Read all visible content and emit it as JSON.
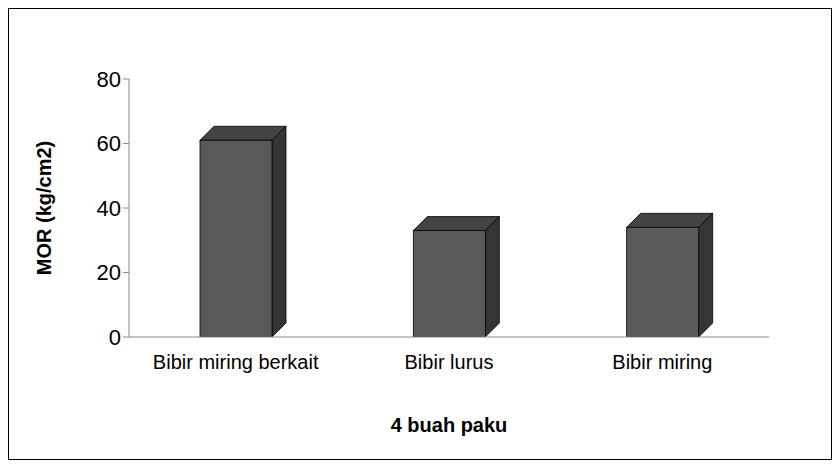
{
  "chart_data": {
    "type": "bar",
    "categories": [
      "Bibir miring berkait",
      "Bibir lurus",
      "Bibir miring"
    ],
    "values": [
      61,
      33,
      34
    ],
    "color": "#595959",
    "xlabel": "4 buah paku",
    "ylabel": "MOR (kg/cm2)",
    "ylim": [
      0,
      80
    ],
    "yticks": [
      0,
      20,
      40,
      60,
      80
    ],
    "grid": false
  }
}
